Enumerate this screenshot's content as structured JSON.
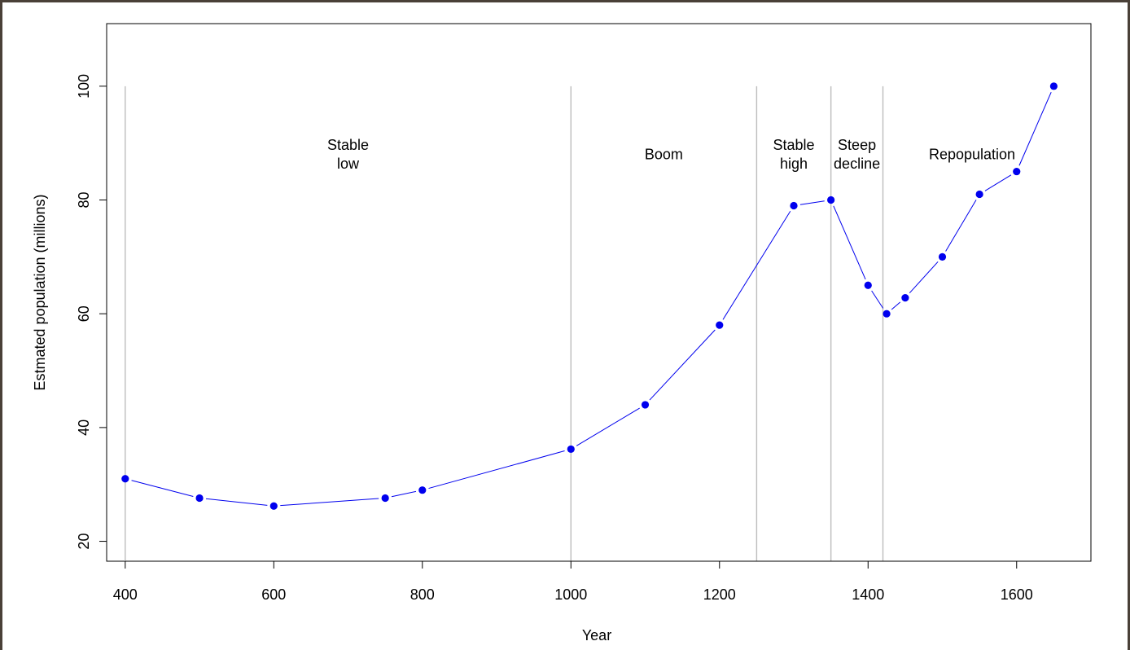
{
  "chart_data": {
    "type": "line",
    "xlabel": "Year",
    "ylabel": "Estmated population (millions)",
    "xlim": [
      375,
      1700
    ],
    "ylim": [
      16.5,
      111
    ],
    "x_ticks": [
      400,
      600,
      800,
      1000,
      1200,
      1400,
      1600
    ],
    "y_ticks": [
      20,
      40,
      60,
      80,
      100
    ],
    "grid": false,
    "series": [
      {
        "color": "#0000ee",
        "points": [
          {
            "x": 400,
            "y": 31
          },
          {
            "x": 500,
            "y": 27.6
          },
          {
            "x": 600,
            "y": 26.2
          },
          {
            "x": 750,
            "y": 27.6
          },
          {
            "x": 800,
            "y": 29
          },
          {
            "x": 1000,
            "y": 36.2
          },
          {
            "x": 1100,
            "y": 44
          },
          {
            "x": 1200,
            "y": 58
          },
          {
            "x": 1300,
            "y": 79
          },
          {
            "x": 1350,
            "y": 80
          },
          {
            "x": 1400,
            "y": 65
          },
          {
            "x": 1425,
            "y": 60
          },
          {
            "x": 1450,
            "y": 62.8
          },
          {
            "x": 1500,
            "y": 70
          },
          {
            "x": 1550,
            "y": 81
          },
          {
            "x": 1600,
            "y": 85
          },
          {
            "x": 1650,
            "y": 100
          }
        ]
      }
    ],
    "vertical_lines": [
      400,
      1000,
      1250,
      1350,
      1420
    ],
    "vertical_line_top": 100,
    "regions": [
      {
        "lines": [
          "Stable",
          "low"
        ],
        "x": 700,
        "y": 88
      },
      {
        "lines": [
          "Boom"
        ],
        "x": 1125,
        "y": 88
      },
      {
        "lines": [
          "Stable",
          "high"
        ],
        "x": 1300,
        "y": 88
      },
      {
        "lines": [
          "Steep",
          "decline"
        ],
        "x": 1385,
        "y": 88
      },
      {
        "lines": [
          "Repopulation"
        ],
        "x": 1540,
        "y": 88
      }
    ]
  }
}
